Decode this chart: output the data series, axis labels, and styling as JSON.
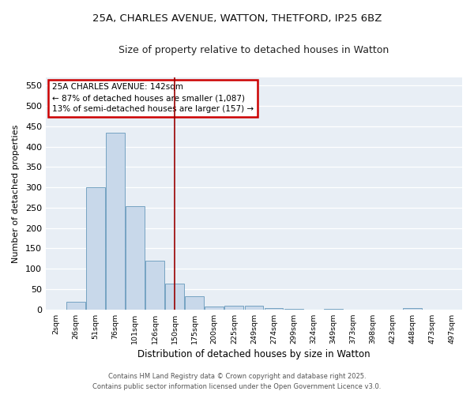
{
  "title_line1": "25A, CHARLES AVENUE, WATTON, THETFORD, IP25 6BZ",
  "title_line2": "Size of property relative to detached houses in Watton",
  "xlabel": "Distribution of detached houses by size in Watton",
  "ylabel": "Number of detached properties",
  "categories": [
    "2sqm",
    "26sqm",
    "51sqm",
    "76sqm",
    "101sqm",
    "126sqm",
    "150sqm",
    "175sqm",
    "200sqm",
    "225sqm",
    "249sqm",
    "274sqm",
    "299sqm",
    "324sqm",
    "349sqm",
    "373sqm",
    "398sqm",
    "423sqm",
    "448sqm",
    "473sqm",
    "497sqm"
  ],
  "values": [
    0,
    18,
    300,
    435,
    253,
    120,
    63,
    33,
    8,
    10,
    10,
    4,
    2,
    0,
    2,
    0,
    0,
    0,
    4,
    0,
    0
  ],
  "bar_color": "#c8d8ea",
  "bar_edgecolor": "#6699bb",
  "vline_x_index": 6,
  "vline_color": "#990000",
  "annotation_title": "25A CHARLES AVENUE: 142sqm",
  "annotation_line2": "← 87% of detached houses are smaller (1,087)",
  "annotation_line3": "13% of semi-detached houses are larger (157) →",
  "annotation_box_edgecolor": "#cc0000",
  "ylim": [
    0,
    570
  ],
  "yticks": [
    0,
    50,
    100,
    150,
    200,
    250,
    300,
    350,
    400,
    450,
    500,
    550
  ],
  "fig_bg_color": "#ffffff",
  "axes_bg_color": "#e8eef5",
  "grid_color": "#ffffff",
  "footnote1": "Contains HM Land Registry data © Crown copyright and database right 2025.",
  "footnote2": "Contains public sector information licensed under the Open Government Licence v3.0."
}
